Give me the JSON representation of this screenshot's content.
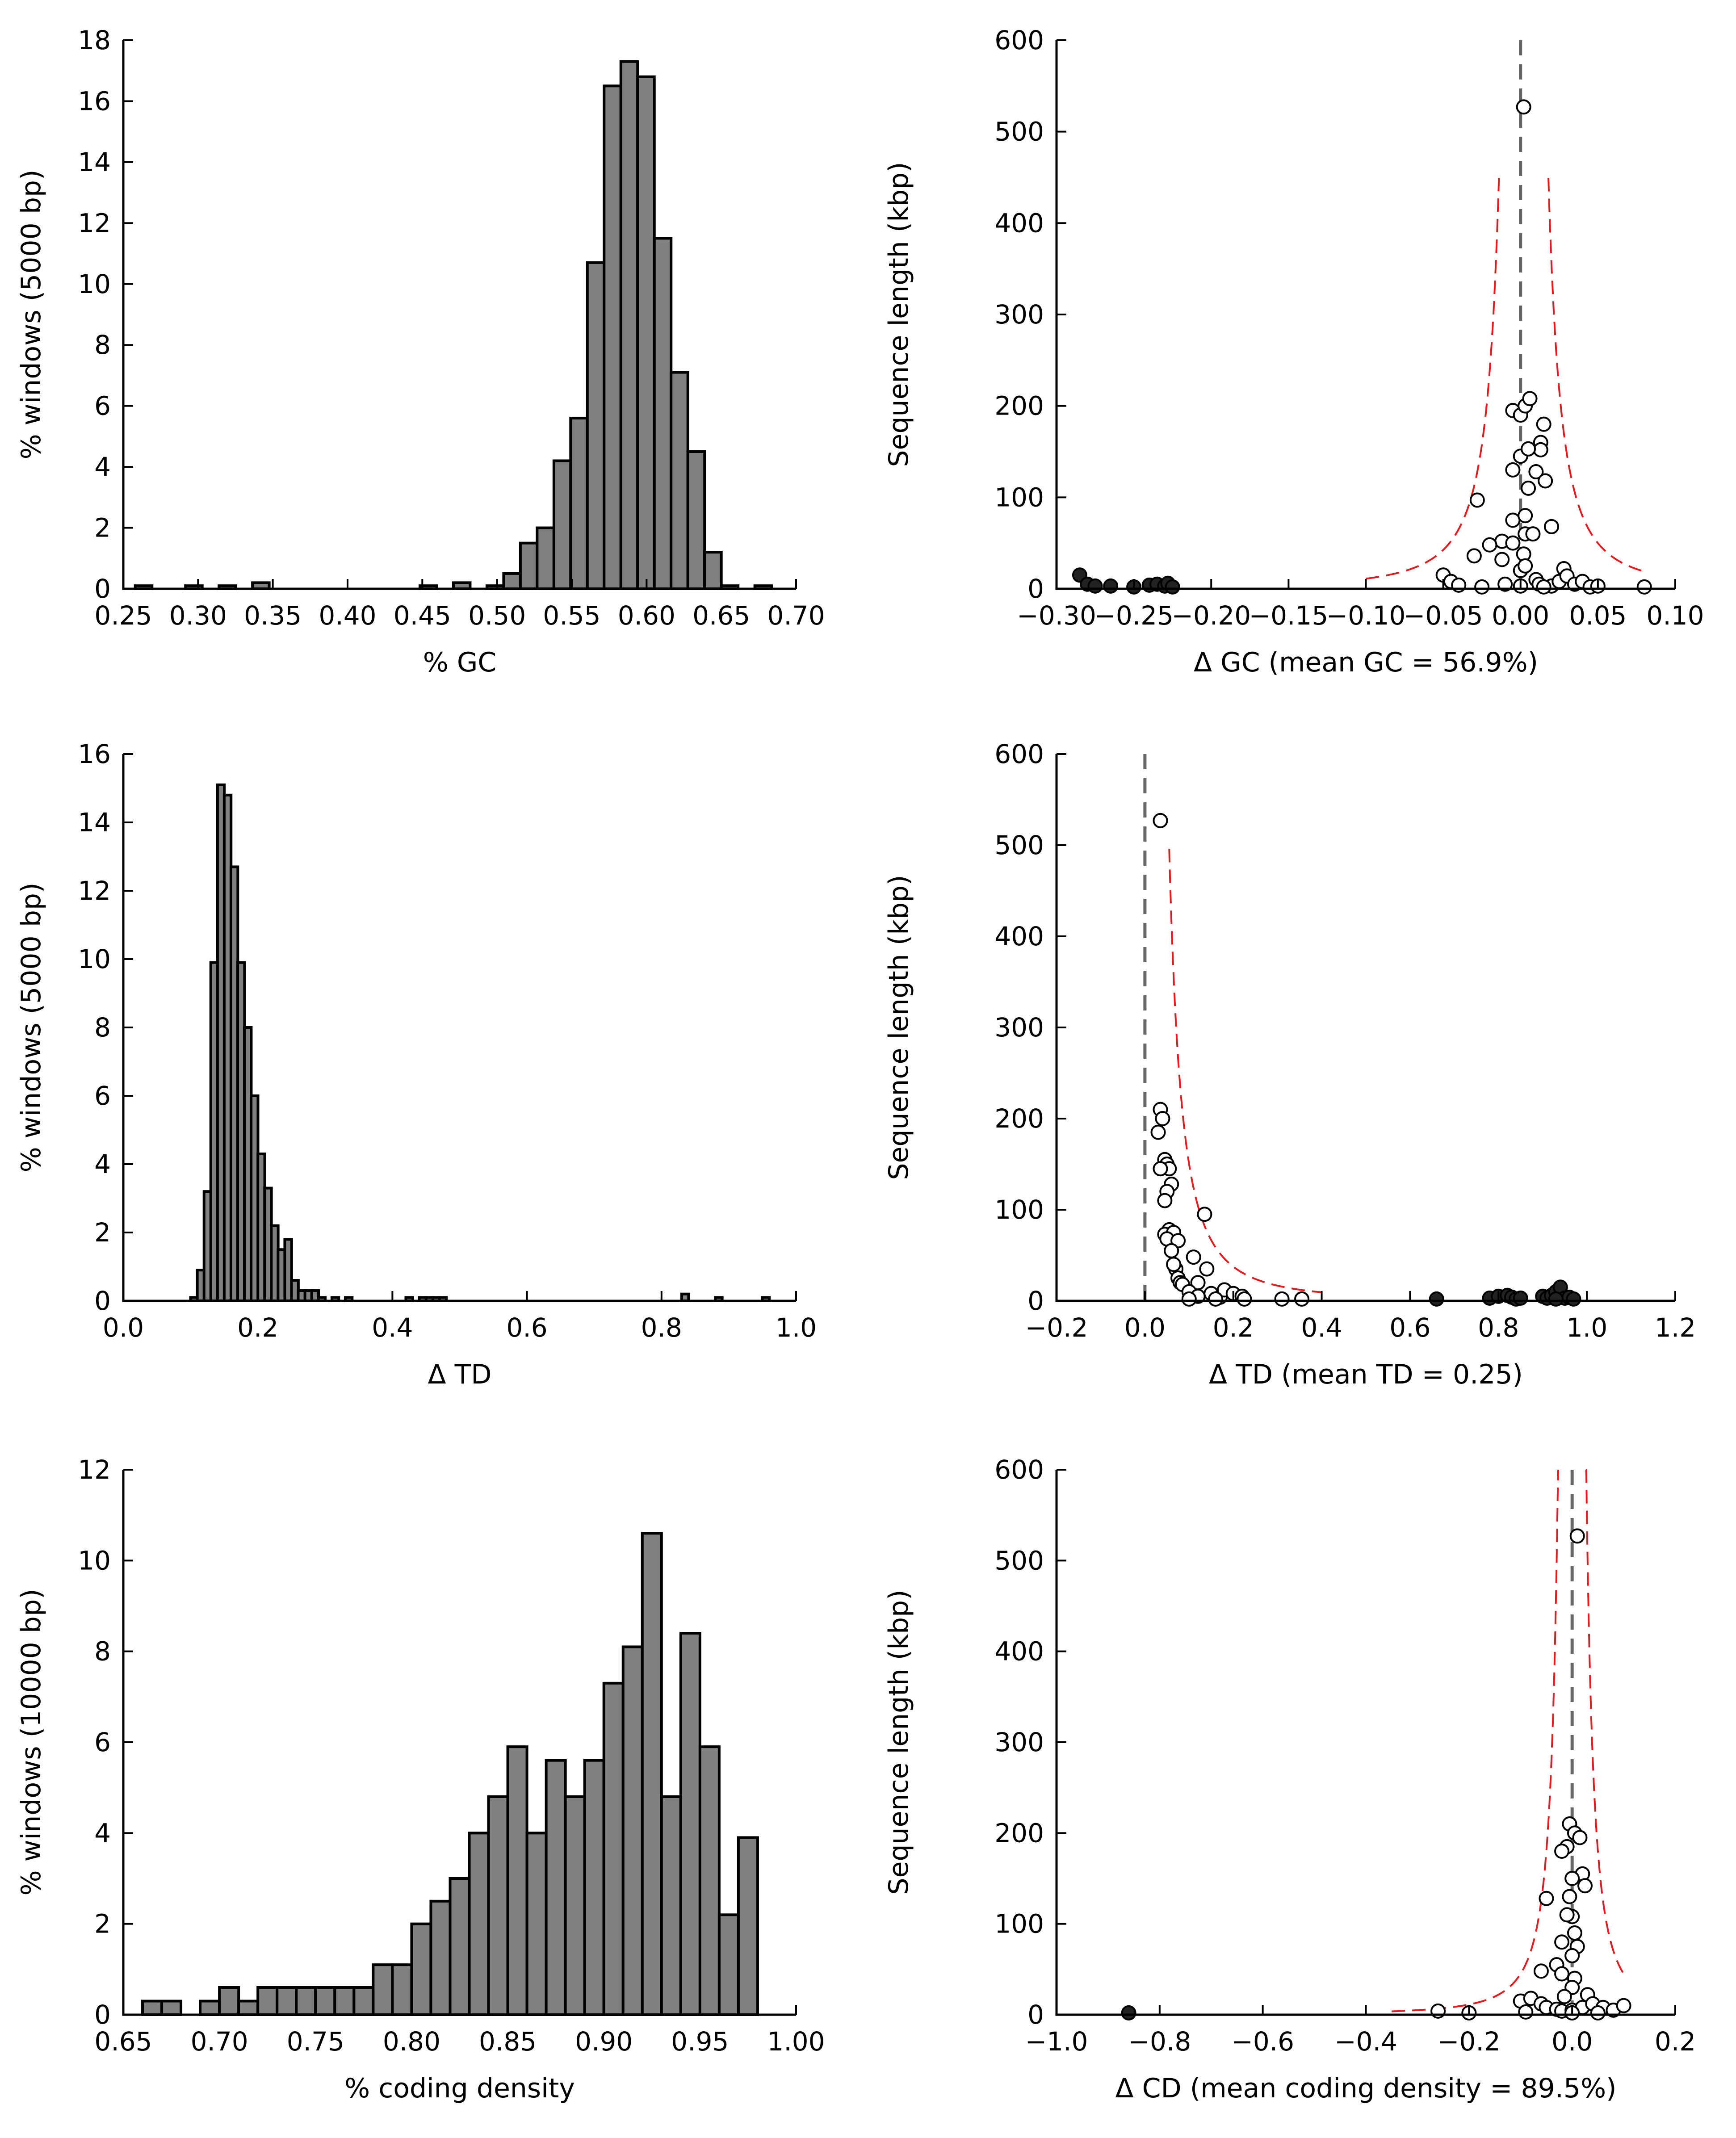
{
  "chart_data": [
    {
      "type": "bar",
      "panel": "top-left",
      "xlabel": "% GC",
      "ylabel": "% windows (5000 bp)",
      "xlim": [
        0.25,
        0.7
      ],
      "ylim": [
        0,
        18
      ],
      "xticks": [
        "0.25",
        "0.30",
        "0.35",
        "0.40",
        "0.45",
        "0.50",
        "0.55",
        "0.60",
        "0.65",
        "0.70"
      ],
      "yticks": [
        "0",
        "2",
        "4",
        "6",
        "8",
        "10",
        "12",
        "14",
        "16",
        "18"
      ],
      "bin_width": 0.0112,
      "bins": [
        {
          "x": 0.258,
          "y": 0.1
        },
        {
          "x": 0.2916,
          "y": 0.1
        },
        {
          "x": 0.314,
          "y": 0.1
        },
        {
          "x": 0.3364,
          "y": 0.2
        },
        {
          "x": 0.4484,
          "y": 0.1
        },
        {
          "x": 0.4708,
          "y": 0.2
        },
        {
          "x": 0.4932,
          "y": 0.1
        },
        {
          "x": 0.5044,
          "y": 0.5
        },
        {
          "x": 0.5156,
          "y": 1.5
        },
        {
          "x": 0.5268,
          "y": 2.0
        },
        {
          "x": 0.538,
          "y": 4.2
        },
        {
          "x": 0.5492,
          "y": 5.6
        },
        {
          "x": 0.5604,
          "y": 10.7
        },
        {
          "x": 0.5716,
          "y": 16.5
        },
        {
          "x": 0.5828,
          "y": 17.3
        },
        {
          "x": 0.594,
          "y": 16.8
        },
        {
          "x": 0.6052,
          "y": 11.5
        },
        {
          "x": 0.6164,
          "y": 7.1
        },
        {
          "x": 0.6276,
          "y": 4.5
        },
        {
          "x": 0.6388,
          "y": 1.2
        },
        {
          "x": 0.65,
          "y": 0.1
        },
        {
          "x": 0.6724,
          "y": 0.1
        }
      ]
    },
    {
      "type": "scatter",
      "panel": "top-right",
      "xlabel": "Δ GC (mean GC = 56.9%)",
      "ylabel": "Sequence length (kbp)",
      "xlim": [
        -0.3,
        0.1
      ],
      "ylim": [
        0,
        600
      ],
      "xticks": [
        "−0.30",
        "−0.25",
        "−0.20",
        "−0.15",
        "−0.10",
        "−0.05",
        "0.00",
        "0.05",
        "0.10"
      ],
      "yticks": [
        "0",
        "100",
        "200",
        "300",
        "400",
        "500",
        "600"
      ],
      "vline_x": 0,
      "threshold": {
        "a": 0.8,
        "neg_start": -0.1,
        "pos_end": 0.08
      },
      "open_points": [
        [
          0.002,
          527
        ],
        [
          -0.005,
          195
        ],
        [
          0.0,
          190
        ],
        [
          0.003,
          200
        ],
        [
          0.006,
          208
        ],
        [
          0.015,
          180
        ],
        [
          0.013,
          160
        ],
        [
          0.013,
          152
        ],
        [
          0.0,
          145
        ],
        [
          0.005,
          153
        ],
        [
          -0.005,
          130
        ],
        [
          0.01,
          128
        ],
        [
          0.016,
          118
        ],
        [
          0.005,
          110
        ],
        [
          -0.028,
          97
        ],
        [
          0.02,
          68
        ],
        [
          -0.005,
          75
        ],
        [
          0.003,
          80
        ],
        [
          0.003,
          60
        ],
        [
          0.008,
          60
        ],
        [
          -0.012,
          52
        ],
        [
          -0.005,
          50
        ],
        [
          -0.02,
          48
        ],
        [
          -0.012,
          32
        ],
        [
          0.002,
          38
        ],
        [
          -0.03,
          36
        ],
        [
          -0.05,
          15
        ],
        [
          -0.045,
          8
        ],
        [
          -0.04,
          4
        ],
        [
          -0.025,
          2
        ],
        [
          -0.01,
          5
        ],
        [
          0.0,
          20
        ],
        [
          0.003,
          25
        ],
        [
          0.01,
          10
        ],
        [
          0.012,
          5
        ],
        [
          0.02,
          3
        ],
        [
          0.025,
          8
        ],
        [
          0.028,
          22
        ],
        [
          0.03,
          14
        ],
        [
          0.035,
          5
        ],
        [
          0.04,
          8
        ],
        [
          0.045,
          2
        ],
        [
          0.05,
          3
        ],
        [
          0.08,
          2
        ],
        [
          0.0,
          3
        ],
        [
          0.015,
          2
        ]
      ],
      "filled_points": [
        [
          -0.285,
          15
        ],
        [
          -0.28,
          5
        ],
        [
          -0.275,
          3
        ],
        [
          -0.265,
          3
        ],
        [
          -0.25,
          2
        ],
        [
          -0.24,
          4
        ],
        [
          -0.235,
          5
        ],
        [
          -0.23,
          3
        ],
        [
          -0.228,
          6
        ],
        [
          -0.225,
          2
        ]
      ]
    },
    {
      "type": "bar",
      "panel": "middle-left",
      "xlabel": "Δ TD",
      "ylabel": "% windows (5000 bp)",
      "xlim": [
        0.0,
        1.0
      ],
      "ylim": [
        0,
        16
      ],
      "xticks": [
        "0.0",
        "0.2",
        "0.4",
        "0.6",
        "0.8",
        "1.0"
      ],
      "yticks": [
        "0",
        "2",
        "4",
        "6",
        "8",
        "10",
        "12",
        "14",
        "16"
      ],
      "bin_width": 0.0102,
      "bins": [
        {
          "x": 0.1,
          "y": 0.1
        },
        {
          "x": 0.11,
          "y": 0.9
        },
        {
          "x": 0.12,
          "y": 3.2
        },
        {
          "x": 0.13,
          "y": 9.9
        },
        {
          "x": 0.14,
          "y": 15.1
        },
        {
          "x": 0.15,
          "y": 14.8
        },
        {
          "x": 0.16,
          "y": 12.7
        },
        {
          "x": 0.17,
          "y": 9.9
        },
        {
          "x": 0.18,
          "y": 8.0
        },
        {
          "x": 0.19,
          "y": 6.0
        },
        {
          "x": 0.2,
          "y": 4.3
        },
        {
          "x": 0.21,
          "y": 3.3
        },
        {
          "x": 0.22,
          "y": 2.2
        },
        {
          "x": 0.23,
          "y": 1.5
        },
        {
          "x": 0.24,
          "y": 1.8
        },
        {
          "x": 0.25,
          "y": 0.6
        },
        {
          "x": 0.26,
          "y": 0.3
        },
        {
          "x": 0.27,
          "y": 0.3
        },
        {
          "x": 0.28,
          "y": 0.3
        },
        {
          "x": 0.29,
          "y": 0.1
        },
        {
          "x": 0.31,
          "y": 0.1
        },
        {
          "x": 0.33,
          "y": 0.1
        },
        {
          "x": 0.42,
          "y": 0.1
        },
        {
          "x": 0.44,
          "y": 0.1
        },
        {
          "x": 0.45,
          "y": 0.1
        },
        {
          "x": 0.46,
          "y": 0.1
        },
        {
          "x": 0.47,
          "y": 0.1
        },
        {
          "x": 0.83,
          "y": 0.2
        },
        {
          "x": 0.88,
          "y": 0.1
        },
        {
          "x": 0.95,
          "y": 0.1
        }
      ]
    },
    {
      "type": "scatter",
      "panel": "middle-right",
      "xlabel": "Δ TD (mean TD = 0.25)",
      "ylabel": "Sequence length (kbp)",
      "xlim": [
        -0.2,
        1.2
      ],
      "ylim": [
        0,
        600
      ],
      "xticks": [
        "−0.2",
        "0.0",
        "0.2",
        "0.4",
        "0.6",
        "0.8",
        "1.0",
        "1.2"
      ],
      "yticks": [
        "0",
        "100",
        "200",
        "300",
        "400",
        "500",
        "600"
      ],
      "vline_x": 0,
      "threshold": {
        "a": 3.0,
        "x_end": 0.4
      },
      "open_points": [
        [
          0.035,
          527
        ],
        [
          0.035,
          210
        ],
        [
          0.04,
          200
        ],
        [
          0.03,
          185
        ],
        [
          0.045,
          155
        ],
        [
          0.05,
          150
        ],
        [
          0.055,
          145
        ],
        [
          0.035,
          145
        ],
        [
          0.06,
          128
        ],
        [
          0.05,
          120
        ],
        [
          0.045,
          110
        ],
        [
          0.135,
          95
        ],
        [
          0.055,
          78
        ],
        [
          0.045,
          73
        ],
        [
          0.065,
          75
        ],
        [
          0.05,
          68
        ],
        [
          0.075,
          66
        ],
        [
          0.06,
          55
        ],
        [
          0.07,
          35
        ],
        [
          0.065,
          40
        ],
        [
          0.075,
          25
        ],
        [
          0.08,
          20
        ],
        [
          0.085,
          18
        ],
        [
          0.11,
          48
        ],
        [
          0.14,
          35
        ],
        [
          0.12,
          20
        ],
        [
          0.1,
          10
        ],
        [
          0.12,
          5
        ],
        [
          0.15,
          8
        ],
        [
          0.17,
          4
        ],
        [
          0.18,
          12
        ],
        [
          0.2,
          8
        ],
        [
          0.22,
          5
        ],
        [
          0.225,
          2
        ],
        [
          0.16,
          2
        ],
        [
          0.1,
          2
        ],
        [
          0.31,
          2
        ],
        [
          0.355,
          2
        ]
      ],
      "filled_points": [
        [
          0.66,
          2
        ],
        [
          0.78,
          3
        ],
        [
          0.8,
          5
        ],
        [
          0.82,
          6
        ],
        [
          0.83,
          4
        ],
        [
          0.84,
          2
        ],
        [
          0.85,
          3
        ],
        [
          0.9,
          5
        ],
        [
          0.91,
          3
        ],
        [
          0.92,
          6
        ],
        [
          0.93,
          10
        ],
        [
          0.94,
          15
        ],
        [
          0.95,
          3
        ],
        [
          0.96,
          4
        ],
        [
          0.97,
          2
        ],
        [
          0.93,
          2
        ]
      ]
    },
    {
      "type": "bar",
      "panel": "bottom-left",
      "xlabel": "% coding density",
      "ylabel": "% windows (10000 bp)",
      "xlim": [
        0.65,
        1.0
      ],
      "ylim": [
        0,
        12
      ],
      "xticks": [
        "0.65",
        "0.70",
        "0.75",
        "0.80",
        "0.85",
        "0.90",
        "0.95",
        "1.00"
      ],
      "yticks": [
        "0",
        "2",
        "4",
        "6",
        "8",
        "10",
        "12"
      ],
      "bin_width": 0.01,
      "bins": [
        {
          "x": 0.66,
          "y": 0.3
        },
        {
          "x": 0.67,
          "y": 0.3
        },
        {
          "x": 0.69,
          "y": 0.3
        },
        {
          "x": 0.7,
          "y": 0.6
        },
        {
          "x": 0.71,
          "y": 0.3
        },
        {
          "x": 0.72,
          "y": 0.6
        },
        {
          "x": 0.73,
          "y": 0.6
        },
        {
          "x": 0.74,
          "y": 0.6
        },
        {
          "x": 0.75,
          "y": 0.6
        },
        {
          "x": 0.76,
          "y": 0.6
        },
        {
          "x": 0.77,
          "y": 0.6
        },
        {
          "x": 0.78,
          "y": 1.1
        },
        {
          "x": 0.79,
          "y": 1.1
        },
        {
          "x": 0.8,
          "y": 2.0
        },
        {
          "x": 0.81,
          "y": 2.5
        },
        {
          "x": 0.82,
          "y": 3.0
        },
        {
          "x": 0.83,
          "y": 4.0
        },
        {
          "x": 0.84,
          "y": 4.8
        },
        {
          "x": 0.85,
          "y": 5.9
        },
        {
          "x": 0.86,
          "y": 4.0
        },
        {
          "x": 0.87,
          "y": 5.6
        },
        {
          "x": 0.88,
          "y": 4.8
        },
        {
          "x": 0.89,
          "y": 5.6
        },
        {
          "x": 0.9,
          "y": 7.3
        },
        {
          "x": 0.91,
          "y": 8.1
        },
        {
          "x": 0.92,
          "y": 10.6
        },
        {
          "x": 0.93,
          "y": 4.8
        },
        {
          "x": 0.94,
          "y": 8.4
        },
        {
          "x": 0.95,
          "y": 5.9
        },
        {
          "x": 0.96,
          "y": 2.2
        },
        {
          "x": 0.97,
          "y": 3.9
        }
      ]
    },
    {
      "type": "scatter",
      "panel": "bottom-right",
      "xlabel": "Δ CD (mean coding density = 89.5%)",
      "ylabel": "Sequence length (kbp)",
      "xlim": [
        -1.0,
        0.2
      ],
      "ylim": [
        0,
        600
      ],
      "xticks": [
        "−1.0",
        "−0.8",
        "−0.6",
        "−0.4",
        "−0.2",
        "0.0",
        "0.2"
      ],
      "yticks": [
        "0",
        "100",
        "200",
        "300",
        "400",
        "500",
        "600"
      ],
      "vline_x": 0,
      "threshold": {
        "a": 1.33,
        "neg_start": -0.35,
        "pos_end": 0.1
      },
      "open_points": [
        [
          0.01,
          527
        ],
        [
          -0.005,
          210
        ],
        [
          0.005,
          200
        ],
        [
          0.015,
          195
        ],
        [
          -0.01,
          185
        ],
        [
          0.02,
          155
        ],
        [
          0.025,
          142
        ],
        [
          0.0,
          150
        ],
        [
          -0.02,
          180
        ],
        [
          -0.005,
          130
        ],
        [
          -0.05,
          128
        ],
        [
          0.0,
          108
        ],
        [
          -0.01,
          110
        ],
        [
          0.005,
          90
        ],
        [
          -0.02,
          80
        ],
        [
          0.01,
          75
        ],
        [
          0.0,
          65
        ],
        [
          -0.03,
          55
        ],
        [
          -0.02,
          45
        ],
        [
          -0.06,
          48
        ],
        [
          0.005,
          40
        ],
        [
          0.0,
          30
        ],
        [
          -0.015,
          20
        ],
        [
          -0.1,
          15
        ],
        [
          -0.08,
          18
        ],
        [
          -0.06,
          12
        ],
        [
          -0.05,
          8
        ],
        [
          -0.03,
          6
        ],
        [
          -0.02,
          4
        ],
        [
          0.0,
          5
        ],
        [
          0.02,
          8
        ],
        [
          0.03,
          22
        ],
        [
          0.04,
          12
        ],
        [
          0.06,
          8
        ],
        [
          0.08,
          5
        ],
        [
          0.1,
          10
        ],
        [
          0.05,
          2
        ],
        [
          -0.09,
          3
        ],
        [
          -0.26,
          4
        ],
        [
          -0.2,
          2
        ],
        [
          0.0,
          2
        ]
      ],
      "filled_points": [
        [
          -0.86,
          2
        ]
      ]
    }
  ]
}
